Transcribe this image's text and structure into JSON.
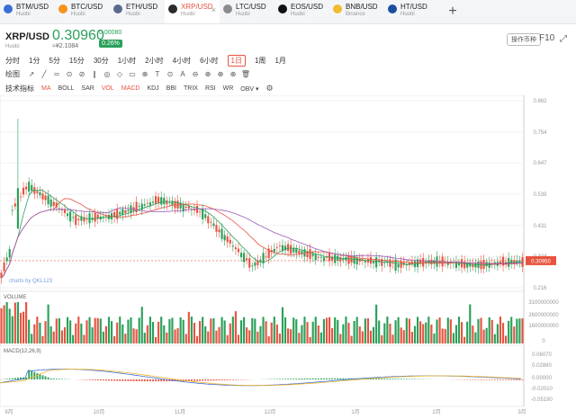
{
  "tabs": [
    {
      "pair": "BTM/USD",
      "exchange": "Huobi",
      "color": "#3a6fd8"
    },
    {
      "pair": "BTC/USD",
      "exchange": "Huobi",
      "color": "#f7931a"
    },
    {
      "pair": "ETH/USD",
      "exchange": "Huobi",
      "color": "#5b6a8f"
    },
    {
      "pair": "XRP/USD",
      "exchange": "Huobi",
      "color": "#2b2b2b",
      "active": true
    },
    {
      "pair": "LTC/USD",
      "exchange": "Huobi",
      "color": "#8c8c8c"
    },
    {
      "pair": "EOS/USD",
      "exchange": "Huobi",
      "color": "#111111"
    },
    {
      "pair": "BNB/USD",
      "exchange": "Binance",
      "color": "#f3ba2f"
    },
    {
      "pair": "HT/USD",
      "exchange": "Huobi",
      "color": "#1a4fa0"
    }
  ],
  "header": {
    "symbol": "XRP/USD",
    "exchange": "Huobi",
    "price": "0.30960",
    "cny": "≈¥2.1084",
    "change_abs": "0.00080",
    "change_pct": "0.26%",
    "action_btn": "操作币种",
    "f10": "F10",
    "fullscreen": "⤢"
  },
  "intervals": [
    "分时",
    "1分",
    "5分",
    "15分",
    "30分",
    "1小时",
    "2小时",
    "4小时",
    "6小时",
    "1日",
    "1周",
    "1月"
  ],
  "active_interval": "1日",
  "draw": {
    "label": "绘图",
    "tools": [
      "↗",
      "╱",
      "═",
      "⊙",
      "⊘",
      "∥",
      "◎",
      "◇",
      "▭",
      "⊕",
      "T",
      "⊙",
      "A",
      "⊖",
      "⊕",
      "⊕",
      "⊕",
      "🗑"
    ]
  },
  "indicators": {
    "label": "技术指标",
    "items": [
      "MA",
      "BOLL",
      "SAR",
      "VOL",
      "MACD",
      "KDJ",
      "BBI",
      "TRIX",
      "RSI",
      "WR",
      "OBV ▾"
    ],
    "active": [
      "MA",
      "VOL",
      "MACD"
    ]
  },
  "chart_data": {
    "type": "candlestick",
    "x_ticks": [
      "9月",
      "10月",
      "11月",
      "12月",
      "1月",
      "2月",
      "3月"
    ],
    "price_ticks": [
      "0.862",
      "0.754",
      "0.647",
      "0.539",
      "0.431",
      "0.324",
      "0.216"
    ],
    "y_range": [
      0.216,
      0.862
    ],
    "last_price": "0.30950",
    "last_price_value": 0.3095,
    "watermark": "charts by QKL123",
    "volume_label": "VOLUME",
    "volume_ticks": [
      "3100000000",
      "2600000000",
      "1600000000",
      "0"
    ],
    "macd_label": "MACD(12,26,9)",
    "macd_ticks": [
      "0.06070",
      "0.02880",
      "0.00000",
      "-0.02010",
      "-0.05190"
    ],
    "up_color": "#2aa05a",
    "down_color": "#e8533f"
  }
}
